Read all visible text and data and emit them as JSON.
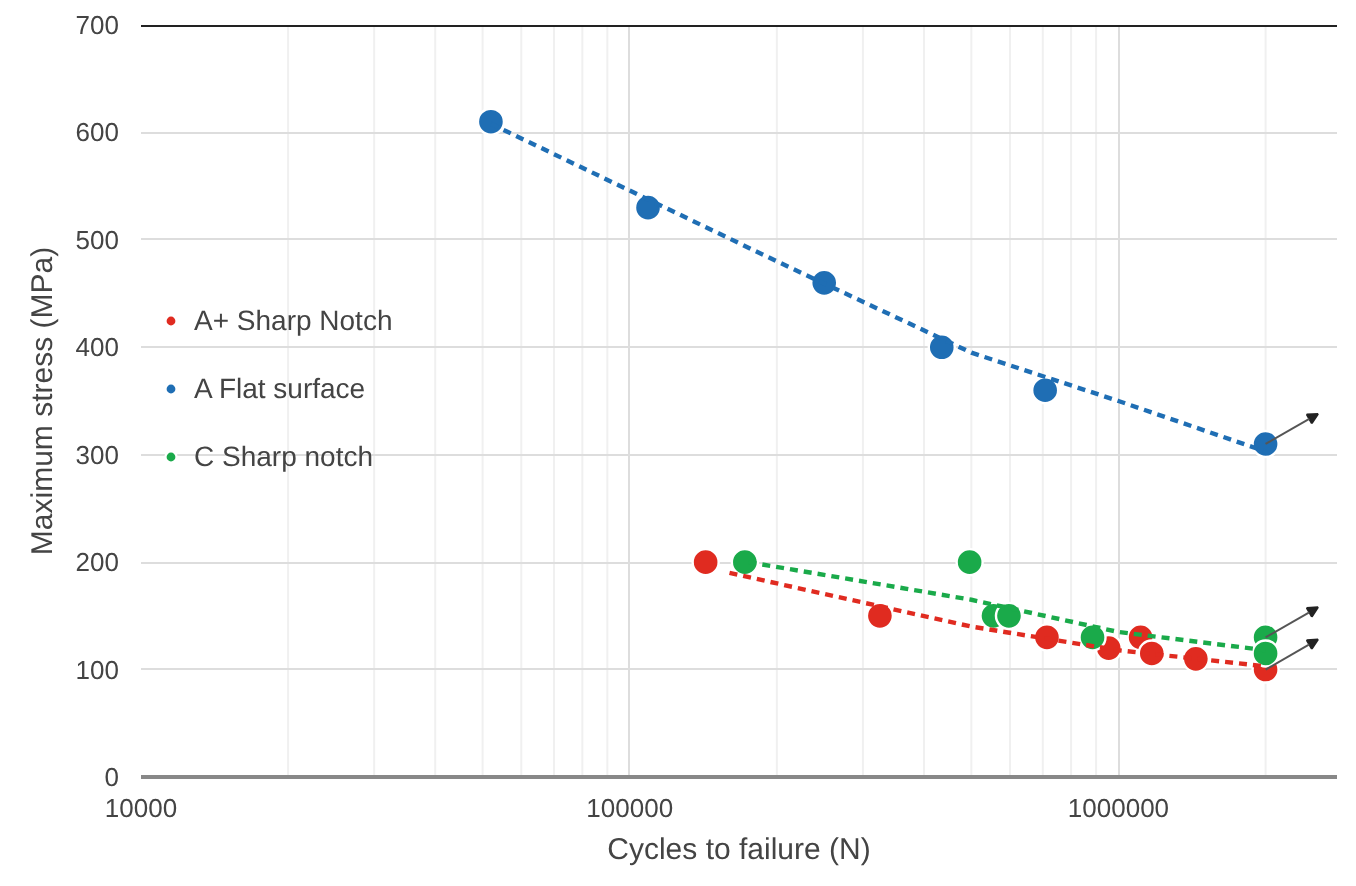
{
  "chart_data": {
    "type": "scatter",
    "xlabel": "Cycles to failure (N)",
    "ylabel": "Maximum stress (MPa)",
    "log": "x",
    "xlim": [
      10000,
      2800000
    ],
    "xticks": [
      10000,
      100000,
      1000000
    ],
    "ylim": [
      0,
      700
    ],
    "yticks": [
      0,
      100,
      200,
      300,
      400,
      500,
      600,
      700
    ],
    "grid": true,
    "legend": "left",
    "marker": "circle",
    "series": [
      {
        "name": "A+ Sharp Notch",
        "color": "#e02b20",
        "x": [
          143000,
          325000,
          714000,
          955000,
          1110000,
          1170000,
          1440000,
          2000000
        ],
        "values": [
          200,
          150,
          130,
          120,
          130,
          115,
          110,
          100
        ]
      },
      {
        "name": "A Flat surface",
        "color": "#1f6eb4",
        "x": [
          52000,
          109000,
          250000,
          435000,
          708000,
          2000000
        ],
        "values": [
          610,
          530,
          460,
          400,
          360,
          310
        ]
      },
      {
        "name": "C Sharp notch",
        "color": "#1aaa4a",
        "x": [
          172000,
          496000,
          555000,
          597000,
          885000,
          2000000,
          2000000
        ],
        "values": [
          200,
          200,
          150,
          150,
          130,
          130,
          115
        ]
      },
      {
        "type": "line",
        "marker": "none",
        "line_style": "dashed",
        "color": "#e02b20",
        "x": [
          160000,
          500000,
          1000000,
          2000000
        ],
        "values": [
          190,
          140,
          118,
          103
        ]
      },
      {
        "type": "line",
        "marker": "none",
        "line_style": "dashed",
        "color": "#1f6eb4",
        "x": [
          52000,
          200000,
          500000,
          1000000,
          2000000
        ],
        "values": [
          608,
          480,
          395,
          350,
          303
        ]
      },
      {
        "type": "line",
        "marker": "none",
        "line_style": "dashed",
        "color": "#1aaa4a",
        "x": [
          175000,
          500000,
          1000000,
          2000000
        ],
        "values": [
          200,
          165,
          135,
          118
        ]
      }
    ]
  }
}
